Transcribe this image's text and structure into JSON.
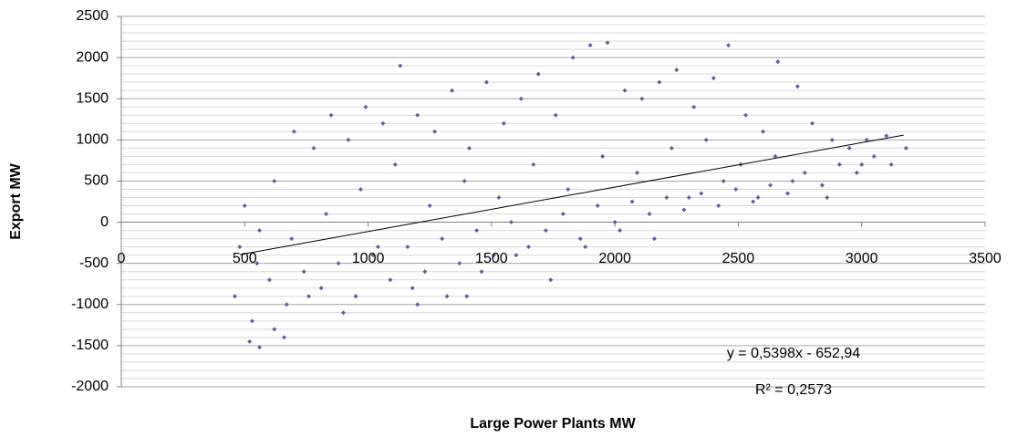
{
  "chart_data": {
    "type": "scatter",
    "x_label": "Large Power Plants MW",
    "y_label": "Export MW",
    "color": "#5f5f9e",
    "xlim": [
      0,
      3500
    ],
    "xticks": [
      0,
      500,
      1000,
      1500,
      2000,
      2500,
      3000,
      3500
    ],
    "ylim": [
      -2000,
      2500
    ],
    "yticks": [
      -2000,
      -1500,
      -1000,
      -500,
      0,
      500,
      1000,
      1500,
      2000,
      2500
    ],
    "grid": true,
    "minor_grid": true,
    "x": [
      460,
      530,
      600,
      670,
      740,
      810,
      880,
      950,
      1020,
      1090,
      1160,
      1230,
      1300,
      1370,
      1440,
      1510,
      1580,
      1650,
      1720,
      1790,
      1860,
      1930,
      2000,
      2070,
      2140,
      2210,
      2280,
      2350,
      2420,
      2490,
      2560,
      2630,
      2700,
      2770,
      2840,
      2910,
      2980,
      3050,
      3120,
      3180,
      500,
      560,
      620,
      700,
      780,
      850,
      920,
      990,
      1060,
      1130,
      1200,
      1270,
      1340,
      1410,
      1480,
      1550,
      1620,
      1690,
      1760,
      1830,
      1900,
      1970,
      2040,
      2110,
      2180,
      2250,
      2320,
      2400,
      2460,
      2530,
      2600,
      2660,
      2740,
      2800,
      2880,
      2950,
      3020,
      3100,
      480,
      550,
      620,
      690,
      760,
      830,
      900,
      970,
      1040,
      1110,
      1180,
      1250,
      1320,
      1390,
      1460,
      1530,
      1600,
      1670,
      1740,
      1810,
      1880,
      1950,
      2020,
      2090,
      2160,
      2230,
      2300,
      2370,
      2440,
      2510,
      2580,
      2650,
      2720,
      2860,
      3000,
      520,
      560,
      660,
      1200,
      1400
    ],
    "values": [
      -900,
      -1200,
      -700,
      -1000,
      -600,
      -800,
      -500,
      -900,
      -400,
      -700,
      -300,
      -600,
      -200,
      -500,
      -100,
      -400,
      0,
      -300,
      -100,
      100,
      -200,
      200,
      0,
      250,
      100,
      300,
      150,
      350,
      200,
      400,
      250,
      450,
      350,
      600,
      450,
      700,
      600,
      800,
      700,
      900,
      200,
      -100,
      500,
      1100,
      900,
      1300,
      1000,
      1400,
      1200,
      1900,
      1300,
      1100,
      1600,
      900,
      1700,
      1200,
      1500,
      1800,
      1300,
      2000,
      2150,
      2180,
      1600,
      1500,
      1700,
      1850,
      1400,
      1750,
      2150,
      1300,
      1100,
      1950,
      1650,
      1200,
      1000,
      900,
      1000,
      1050,
      -300,
      -500,
      -1300,
      -200,
      -900,
      100,
      -1100,
      400,
      -300,
      700,
      -800,
      200,
      -900,
      500,
      -600,
      300,
      -400,
      700,
      -700,
      400,
      -300,
      800,
      -100,
      600,
      -200,
      900,
      300,
      1000,
      500,
      700,
      300,
      800,
      500,
      300,
      700,
      -1450,
      -1520,
      -1400,
      -1000,
      -900
    ],
    "trendline": {
      "slope": 0.5398,
      "intercept": -652.94,
      "x_range": [
        480,
        3170
      ],
      "equation": "y = 0,5398x - 652,94",
      "r_squared_label": "R² = 0,2573"
    }
  }
}
